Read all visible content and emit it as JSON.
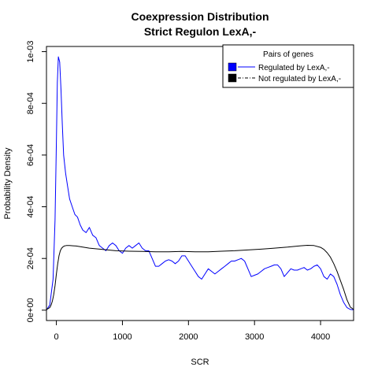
{
  "chart_data": {
    "type": "line",
    "title": "Coexpression Distribution",
    "subtitle": "Strict Regulon LexA,-",
    "xlabel": "SCR",
    "ylabel": "Probability Density",
    "xlim": [
      -150,
      4500
    ],
    "ylim": [
      -4e-05,
      0.00102
    ],
    "x_ticks": [
      0,
      1000,
      2000,
      3000,
      4000
    ],
    "x_tick_labels": [
      "0",
      "1000",
      "2000",
      "3000",
      "4000"
    ],
    "y_ticks": [
      0,
      0.0002,
      0.0004,
      0.0006,
      0.0008,
      0.001
    ],
    "y_tick_labels": [
      "0e+00",
      "2e-04",
      "4e-04",
      "6e-04",
      "8e-04",
      "1e-03"
    ],
    "grid": false,
    "legend": {
      "title": "Pairs of genes",
      "placement": "top-right",
      "entries": [
        "Regulated by  LexA,-",
        "Not regulated by  LexA,-"
      ]
    },
    "series": [
      {
        "name": "Regulated by  LexA,-",
        "color": "#0000ff",
        "x": [
          -150,
          -100,
          -50,
          -20,
          0,
          15,
          30,
          50,
          70,
          90,
          110,
          140,
          170,
          200,
          240,
          280,
          320,
          360,
          400,
          450,
          500,
          550,
          600,
          650,
          700,
          750,
          800,
          850,
          900,
          950,
          1000,
          1050,
          1100,
          1150,
          1200,
          1250,
          1300,
          1350,
          1400,
          1450,
          1500,
          1550,
          1600,
          1650,
          1700,
          1750,
          1800,
          1850,
          1900,
          1950,
          2000,
          2050,
          2100,
          2150,
          2200,
          2250,
          2300,
          2350,
          2400,
          2450,
          2500,
          2550,
          2600,
          2650,
          2700,
          2750,
          2800,
          2850,
          2900,
          2950,
          3000,
          3050,
          3100,
          3150,
          3200,
          3250,
          3300,
          3350,
          3400,
          3450,
          3500,
          3550,
          3600,
          3650,
          3700,
          3750,
          3800,
          3850,
          3900,
          3950,
          4000,
          4050,
          4100,
          4150,
          4200,
          4250,
          4300,
          4350,
          4400,
          4450,
          4500
        ],
        "y": [
          5e-07,
          2e-05,
          0.00012,
          0.00035,
          0.00065,
          0.00088,
          0.00098,
          0.00096,
          0.00085,
          0.00072,
          0.0006,
          0.00053,
          0.00048,
          0.00043,
          0.0004,
          0.00037,
          0.00036,
          0.00033,
          0.00031,
          0.0003,
          0.00032,
          0.00029,
          0.00028,
          0.00025,
          0.00024,
          0.00023,
          0.00025,
          0.00026,
          0.00025,
          0.00023,
          0.00022,
          0.00024,
          0.00025,
          0.00024,
          0.00025,
          0.00026,
          0.00024,
          0.00023,
          0.00023,
          0.0002,
          0.00017,
          0.00017,
          0.00018,
          0.00019,
          0.000195,
          0.00019,
          0.00018,
          0.00019,
          0.00021,
          0.00021,
          0.00019,
          0.00017,
          0.00015,
          0.00013,
          0.00012,
          0.00014,
          0.00016,
          0.00015,
          0.00014,
          0.00015,
          0.00016,
          0.00017,
          0.00018,
          0.00019,
          0.00019,
          0.000195,
          0.0002,
          0.00019,
          0.00016,
          0.00013,
          0.000135,
          0.00014,
          0.00015,
          0.00016,
          0.000165,
          0.00017,
          0.000175,
          0.000175,
          0.00016,
          0.00013,
          0.000145,
          0.00016,
          0.000155,
          0.000155,
          0.00016,
          0.000165,
          0.000155,
          0.00016,
          0.00017,
          0.000175,
          0.00016,
          0.00013,
          0.00012,
          0.00014,
          0.00013,
          0.0001,
          6e-05,
          3e-05,
          1e-05,
          3e-06,
          1e-06
        ]
      },
      {
        "name": "Not regulated by  LexA,-",
        "color": "#000000",
        "x": [
          -150,
          -100,
          -80,
          -60,
          -40,
          -20,
          0,
          20,
          40,
          60,
          80,
          100,
          120,
          150,
          200,
          250,
          300,
          400,
          500,
          700,
          900,
          1100,
          1300,
          1500,
          1700,
          1900,
          2100,
          2300,
          2500,
          2700,
          2900,
          3100,
          3300,
          3500,
          3700,
          3800,
          3900,
          4000,
          4050,
          4100,
          4150,
          4200,
          4250,
          4300,
          4350,
          4400,
          4450,
          4500
        ],
        "y": [
          2e-06,
          1e-05,
          2e-05,
          3.5e-05,
          6e-05,
          9.5e-05,
          0.00014,
          0.00018,
          0.00021,
          0.00023,
          0.00024,
          0.000245,
          0.000248,
          0.00025,
          0.00025,
          0.000249,
          0.000248,
          0.000244,
          0.00024,
          0.000235,
          0.00023,
          0.000228,
          0.000227,
          0.000226,
          0.000226,
          0.000227,
          0.000226,
          0.000226,
          0.000228,
          0.00023,
          0.000233,
          0.000236,
          0.00024,
          0.000244,
          0.000249,
          0.000251,
          0.00025,
          0.000243,
          0.000235,
          0.000222,
          0.000205,
          0.00018,
          0.00015,
          0.000115,
          8e-05,
          4e-05,
          1.2e-05,
          3e-06
        ]
      }
    ]
  }
}
